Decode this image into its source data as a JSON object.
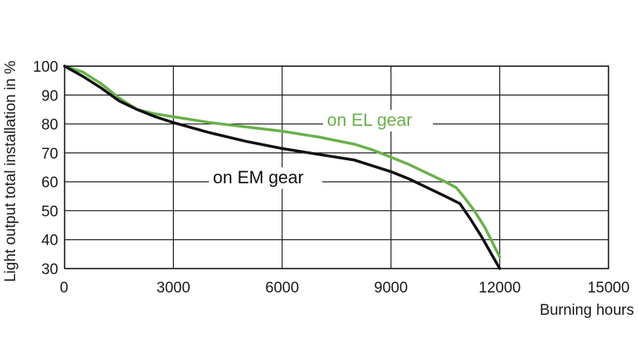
{
  "chart_data": {
    "type": "line",
    "title": "",
    "xlabel": "Burning hours",
    "ylabel": "Light output total installation in %",
    "xlim": [
      0,
      15000
    ],
    "ylim": [
      30,
      100
    ],
    "xticks": [
      "0",
      "3000",
      "6000",
      "9000",
      "12000",
      "15000"
    ],
    "yticks": [
      "100",
      "90",
      "80",
      "70",
      "60",
      "50",
      "40",
      "30"
    ],
    "grid": true,
    "series": [
      {
        "name": "on EL gear",
        "color": "#6ab04c",
        "x": [
          0,
          500,
          1000,
          1500,
          2000,
          2500,
          3000,
          4000,
          5000,
          6000,
          7000,
          8000,
          8500,
          9000,
          9500,
          10000,
          10500,
          10800,
          11000,
          11300,
          11600,
          12000
        ],
        "y": [
          100,
          98,
          94,
          89,
          85,
          83.5,
          82.5,
          80.5,
          79,
          77.5,
          75.5,
          73,
          71,
          68.5,
          66,
          63,
          60,
          58,
          55,
          50,
          44,
          34
        ]
      },
      {
        "name": "on EM gear",
        "color": "#111111",
        "x": [
          0,
          500,
          1000,
          1500,
          2000,
          2500,
          3000,
          4000,
          5000,
          6000,
          7000,
          8000,
          8500,
          9000,
          9500,
          10000,
          10500,
          10900,
          11200,
          11500,
          12000
        ],
        "y": [
          100,
          96.5,
          92.5,
          88,
          85,
          82.5,
          80.5,
          77,
          74,
          71.5,
          69.5,
          67.5,
          65.5,
          63.5,
          61,
          58,
          55,
          52.5,
          47,
          41,
          30
        ]
      }
    ],
    "annotations": [
      {
        "text": "on EL gear",
        "series": 0
      },
      {
        "text": "on EM gear",
        "series": 1
      }
    ]
  }
}
